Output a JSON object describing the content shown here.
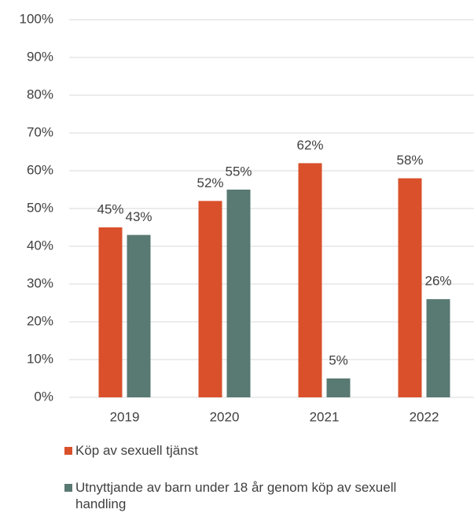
{
  "chart_data": {
    "type": "bar",
    "categories": [
      "2019",
      "2020",
      "2021",
      "2022"
    ],
    "series": [
      {
        "name": "Köp av sexuell tjänst",
        "color": "#d9502b",
        "values": [
          45,
          52,
          62,
          58
        ],
        "value_labels": [
          "45%",
          "52%",
          "62%",
          "58%"
        ]
      },
      {
        "name": "Utnyttjande av barn under 18 år genom köp av sexuell handling",
        "color": "#597973",
        "values": [
          43,
          55,
          5,
          26
        ],
        "value_labels": [
          "43%",
          "55%",
          "5%",
          "26%"
        ]
      }
    ],
    "ylim": [
      0,
      100
    ],
    "yticks": [
      {
        "value": 0,
        "label": "0%"
      },
      {
        "value": 10,
        "label": "10%"
      },
      {
        "value": 20,
        "label": "20%"
      },
      {
        "value": 30,
        "label": "30%"
      },
      {
        "value": 40,
        "label": "40%"
      },
      {
        "value": 50,
        "label": "50%"
      },
      {
        "value": 60,
        "label": "60%"
      },
      {
        "value": 70,
        "label": "70%"
      },
      {
        "value": 80,
        "label": "80%"
      },
      {
        "value": 90,
        "label": "90%"
      },
      {
        "value": 100,
        "label": "100%"
      }
    ],
    "grid": true,
    "legend": "bottom"
  }
}
